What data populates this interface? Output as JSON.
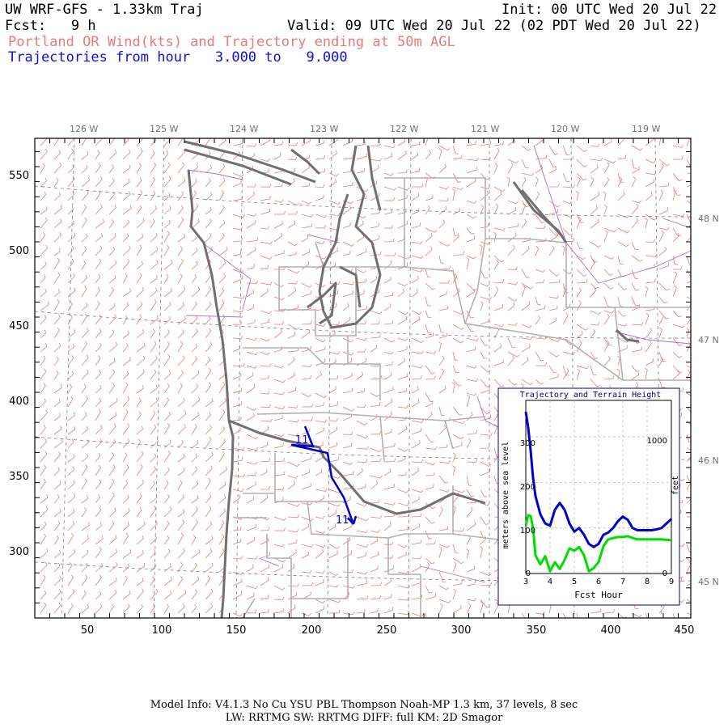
{
  "header": {
    "title": "UW WRF-GFS - 1.33km Traj",
    "init": "Init: 00 UTC Wed 20 Jul 22",
    "fcst": "Fcst:   9 h",
    "valid": "Valid: 09 UTC Wed 20 Jul 22 (02 PDT Wed 20 Jul 22)",
    "subtitle": "Portland OR Wind(kts) and Trajectory ending at 50m AGL",
    "traj_hours": "Trajectories from hour   3.000 to   9.000"
  },
  "map": {
    "lon_labels": [
      "126 W",
      "125 W",
      "124 W",
      "123 W",
      "122 W",
      "121 W",
      "120 W",
      "119 W"
    ],
    "lat_labels": [
      "48 N",
      "47 N",
      "46 N",
      "45 N"
    ],
    "x_ticks": [
      "50",
      "100",
      "150",
      "200",
      "250",
      "300",
      "350",
      "400",
      "450"
    ],
    "y_ticks": [
      "550",
      "500",
      "450",
      "400",
      "350",
      "300"
    ],
    "traj_labels": [
      "11",
      "11"
    ],
    "colors": {
      "wind": "#f07878",
      "coast": "#707070",
      "border": "#b0b0b0",
      "county": "#b06ac8",
      "traj": "#0000cc",
      "grid": "#808080"
    }
  },
  "inset": {
    "title": "Trajectory and Terrain Height",
    "ylabel_left": "meters above sea level",
    "ylabel_right": "feet",
    "xlabel": "Fcst Hour",
    "x_ticks": [
      "3",
      "4",
      "5",
      "6",
      "7",
      "8",
      "9"
    ],
    "y_ticks_left": [
      "0",
      "100",
      "200",
      "300"
    ],
    "y_ticks_right": [
      "0",
      "1000"
    ],
    "chart_data": {
      "type": "line",
      "x": [
        3.0,
        3.1,
        3.2,
        3.3,
        3.4,
        3.6,
        3.8,
        4.0,
        4.2,
        4.4,
        4.6,
        4.8,
        5.0,
        5.2,
        5.4,
        5.6,
        5.8,
        6.0,
        6.2,
        6.4,
        6.6,
        6.8,
        7.0,
        7.2,
        7.4,
        7.6,
        7.8,
        8.0,
        8.2,
        8.4,
        8.6,
        8.8,
        9.0
      ],
      "series": [
        {
          "color": "#0000cc",
          "values": [
            355,
            320,
            270,
            210,
            170,
            130,
            110,
            105,
            140,
            155,
            140,
            110,
            92,
            100,
            85,
            65,
            58,
            65,
            85,
            90,
            100,
            115,
            125,
            118,
            100,
            95,
            95,
            95,
            95,
            97,
            100,
            110,
            120
          ]
        },
        {
          "color": "#00dd00",
          "values": [
            105,
            128,
            126,
            100,
            40,
            20,
            38,
            5,
            25,
            10,
            30,
            55,
            50,
            58,
            40,
            5,
            12,
            25,
            60,
            75,
            78,
            80,
            80,
            82,
            78,
            75,
            75,
            75,
            75,
            75,
            75,
            74,
            73
          ]
        }
      ],
      "xlim": [
        3,
        9
      ],
      "ylim": [
        0,
        380
      ]
    }
  },
  "footer": {
    "line1": "Model Info: V4.1.3   No Cu   YSU PBL  Thompson    Noah-MP   1.3 km,  37 levels,    8 sec",
    "line2": "LW: RRTMG SW: RRTMG   DIFF: full   KM: 2D Smagor"
  }
}
